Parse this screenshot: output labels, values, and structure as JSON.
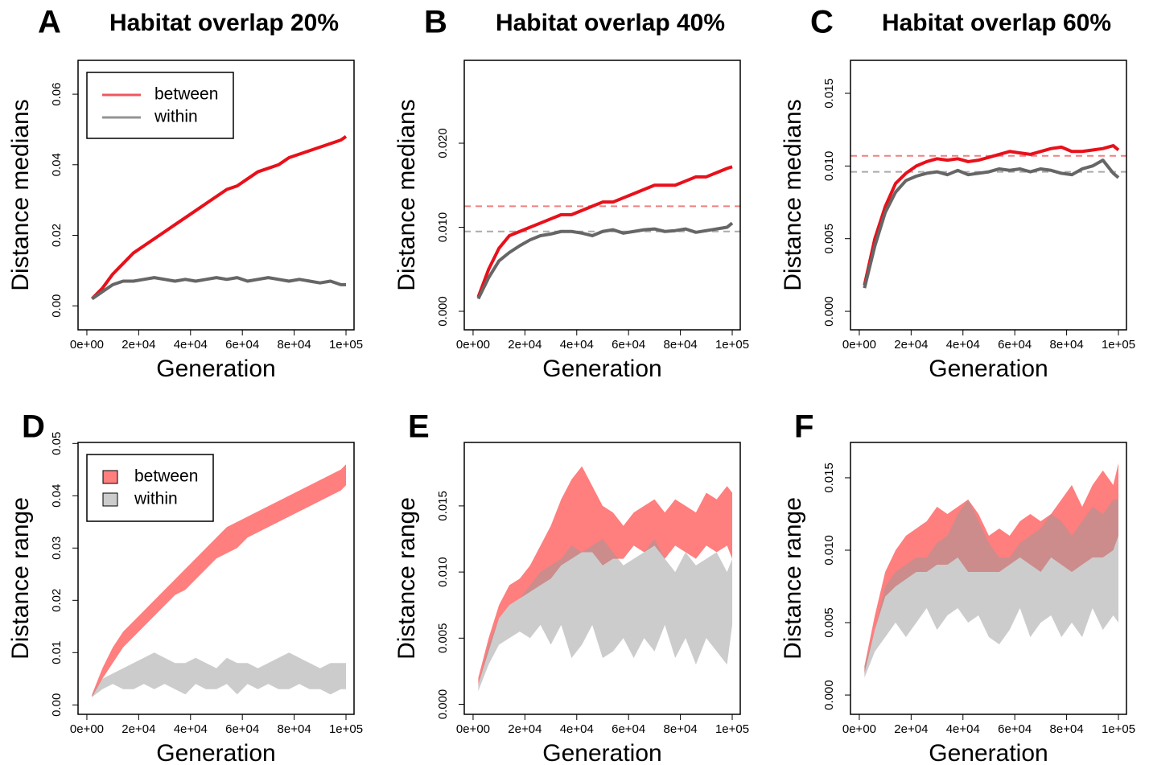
{
  "chart_data": [
    {
      "type": "line",
      "panel_label": "A",
      "title": "Habitat overlap 20%",
      "xlabel": "Generation",
      "ylabel": "Distance medians",
      "legend": "topleft",
      "x": [
        2000,
        6000,
        10000,
        14000,
        18000,
        22000,
        26000,
        30000,
        34000,
        38000,
        42000,
        46000,
        50000,
        54000,
        58000,
        62000,
        66000,
        70000,
        74000,
        78000,
        82000,
        86000,
        90000,
        94000,
        98000,
        100000
      ],
      "xlim": [
        -3400,
        103100
      ],
      "xticks": [
        {
          "value": 0,
          "label": "0e+00"
        },
        {
          "value": 20000,
          "label": "2e+04"
        },
        {
          "value": 40000,
          "label": "4e+04"
        },
        {
          "value": 60000,
          "label": "6e+04"
        },
        {
          "value": 80000,
          "label": "8e+04"
        },
        {
          "value": 100000,
          "label": "1e+05"
        }
      ],
      "ylim": [
        -0.0068,
        0.0696
      ],
      "yticks": [
        {
          "value": 0,
          "label": "0.00"
        },
        0.02,
        0.04,
        0.06
      ],
      "series": [
        {
          "name": "between",
          "color": "#e8101a",
          "values": [
            0.002,
            0.005,
            0.009,
            0.012,
            0.015,
            0.017,
            0.019,
            0.021,
            0.023,
            0.025,
            0.027,
            0.029,
            0.031,
            0.033,
            0.034,
            0.036,
            0.038,
            0.039,
            0.04,
            0.042,
            0.043,
            0.044,
            0.045,
            0.046,
            0.047,
            0.048
          ]
        },
        {
          "name": "within",
          "color": "#666666",
          "values": [
            0.002,
            0.004,
            0.006,
            0.007,
            0.007,
            0.0075,
            0.008,
            0.0075,
            0.007,
            0.0075,
            0.007,
            0.0075,
            0.008,
            0.0075,
            0.008,
            0.007,
            0.0075,
            0.008,
            0.0075,
            0.007,
            0.0075,
            0.007,
            0.0065,
            0.007,
            0.006,
            0.006
          ]
        }
      ]
    },
    {
      "type": "line",
      "panel_label": "B",
      "title": "Habitat overlap 40%",
      "xlabel": "Generation",
      "ylabel": "Distance medians",
      "x": [
        2000,
        6000,
        10000,
        14000,
        18000,
        22000,
        26000,
        30000,
        34000,
        38000,
        42000,
        46000,
        50000,
        54000,
        58000,
        62000,
        66000,
        70000,
        74000,
        78000,
        82000,
        86000,
        90000,
        94000,
        98000,
        100000
      ],
      "xlim": [
        -3400,
        103100
      ],
      "xticks": [
        {
          "value": 0,
          "label": "0e+00"
        },
        {
          "value": 20000,
          "label": "2e+04"
        },
        {
          "value": 40000,
          "label": "4e+04"
        },
        {
          "value": 60000,
          "label": "6e+04"
        },
        {
          "value": 80000,
          "label": "8e+04"
        },
        {
          "value": 100000,
          "label": "1e+05"
        }
      ],
      "ylim": [
        -0.0022,
        0.02986
      ],
      "yticks": [
        {
          "value": 0,
          "label": "0.000"
        },
        {
          "value": 0.01,
          "label": "0.010"
        },
        {
          "value": 0.02,
          "label": "0.020"
        }
      ],
      "hlines": [
        {
          "value": 0.0125,
          "color": "#f08080"
        },
        {
          "value": 0.0095,
          "color": "#aaaaaa"
        }
      ],
      "series": [
        {
          "name": "between",
          "color": "#e8101a",
          "values": [
            0.0017,
            0.005,
            0.0075,
            0.009,
            0.0095,
            0.01,
            0.0105,
            0.011,
            0.0115,
            0.0115,
            0.012,
            0.0125,
            0.013,
            0.013,
            0.0135,
            0.014,
            0.0145,
            0.015,
            0.015,
            0.015,
            0.0155,
            0.016,
            0.016,
            0.0165,
            0.017,
            0.0172
          ]
        },
        {
          "name": "within",
          "color": "#666666",
          "values": [
            0.0015,
            0.004,
            0.006,
            0.007,
            0.0078,
            0.0085,
            0.009,
            0.0092,
            0.0095,
            0.0095,
            0.0093,
            0.009,
            0.0095,
            0.0097,
            0.0093,
            0.0095,
            0.0097,
            0.0098,
            0.0095,
            0.0096,
            0.0098,
            0.0094,
            0.0096,
            0.0098,
            0.01,
            0.0105
          ]
        }
      ]
    },
    {
      "type": "line",
      "panel_label": "C",
      "title": "Habitat overlap 60%",
      "xlabel": "Generation",
      "ylabel": "Distance medians",
      "x": [
        2000,
        6000,
        10000,
        14000,
        18000,
        22000,
        26000,
        30000,
        34000,
        38000,
        42000,
        46000,
        50000,
        54000,
        58000,
        62000,
        66000,
        70000,
        74000,
        78000,
        82000,
        86000,
        90000,
        94000,
        98000,
        100000
      ],
      "xlim": [
        -3400,
        103100
      ],
      "xticks": [
        {
          "value": 0,
          "label": "0e+00"
        },
        {
          "value": 20000,
          "label": "2e+04"
        },
        {
          "value": 40000,
          "label": "4e+04"
        },
        {
          "value": 60000,
          "label": "6e+04"
        },
        {
          "value": 80000,
          "label": "8e+04"
        },
        {
          "value": 100000,
          "label": "1e+05"
        }
      ],
      "ylim": [
        -0.00127,
        0.01727
      ],
      "yticks": [
        {
          "value": 0,
          "label": "0.000"
        },
        0.005,
        {
          "value": 0.01,
          "label": "0.010"
        },
        0.015
      ],
      "hlines": [
        {
          "value": 0.0107,
          "color": "#f08080"
        },
        {
          "value": 0.0096,
          "color": "#aaaaaa"
        }
      ],
      "series": [
        {
          "name": "between",
          "color": "#e8101a",
          "values": [
            0.0018,
            0.005,
            0.0072,
            0.0088,
            0.0095,
            0.01,
            0.0103,
            0.0105,
            0.0104,
            0.0105,
            0.0103,
            0.0104,
            0.0106,
            0.0108,
            0.011,
            0.0109,
            0.0108,
            0.011,
            0.0112,
            0.0113,
            0.011,
            0.011,
            0.0111,
            0.0112,
            0.0114,
            0.0111
          ]
        },
        {
          "name": "within",
          "color": "#666666",
          "values": [
            0.0016,
            0.0045,
            0.0068,
            0.0082,
            0.009,
            0.0093,
            0.0095,
            0.0096,
            0.0094,
            0.0097,
            0.0094,
            0.0095,
            0.0096,
            0.0098,
            0.0097,
            0.0098,
            0.0096,
            0.0098,
            0.0097,
            0.0095,
            0.0094,
            0.0098,
            0.01,
            0.0104,
            0.0095,
            0.0092
          ]
        }
      ]
    },
    {
      "type": "band",
      "panel_label": "D",
      "xlabel": "Generation",
      "ylabel": "Distance range",
      "legend": "topleft",
      "x": [
        2000,
        6000,
        10000,
        14000,
        18000,
        22000,
        26000,
        30000,
        34000,
        38000,
        42000,
        46000,
        50000,
        54000,
        58000,
        62000,
        66000,
        70000,
        74000,
        78000,
        82000,
        86000,
        90000,
        94000,
        98000,
        100000
      ],
      "xlim": [
        -3400,
        103100
      ],
      "xticks": [
        {
          "value": 0,
          "label": "0e+00"
        },
        {
          "value": 20000,
          "label": "2e+04"
        },
        {
          "value": 40000,
          "label": "4e+04"
        },
        {
          "value": 60000,
          "label": "6e+04"
        },
        {
          "value": 80000,
          "label": "8e+04"
        },
        {
          "value": 100000,
          "label": "1e+05"
        }
      ],
      "ylim": [
        -0.0018,
        0.0502
      ],
      "yticks": [
        {
          "value": 0,
          "label": "0.00"
        },
        0.01,
        0.02,
        0.03,
        0.04,
        0.05
      ],
      "series": [
        {
          "name": "between",
          "color": "#ff7777",
          "low": [
            0.0015,
            0.005,
            0.008,
            0.011,
            0.013,
            0.015,
            0.017,
            0.019,
            0.021,
            0.022,
            0.024,
            0.026,
            0.028,
            0.029,
            0.03,
            0.032,
            0.033,
            0.034,
            0.035,
            0.036,
            0.037,
            0.038,
            0.039,
            0.04,
            0.041,
            0.042
          ],
          "high": [
            0.002,
            0.007,
            0.011,
            0.014,
            0.016,
            0.018,
            0.02,
            0.022,
            0.024,
            0.026,
            0.028,
            0.03,
            0.032,
            0.034,
            0.035,
            0.036,
            0.037,
            0.038,
            0.039,
            0.04,
            0.041,
            0.042,
            0.043,
            0.044,
            0.045,
            0.046
          ]
        },
        {
          "name": "within",
          "color": "#999999",
          "low": [
            0.0015,
            0.003,
            0.004,
            0.003,
            0.003,
            0.004,
            0.003,
            0.004,
            0.003,
            0.002,
            0.004,
            0.003,
            0.003,
            0.004,
            0.002,
            0.004,
            0.003,
            0.004,
            0.003,
            0.003,
            0.004,
            0.003,
            0.003,
            0.002,
            0.003,
            0.003
          ],
          "high": [
            0.002,
            0.005,
            0.006,
            0.007,
            0.008,
            0.009,
            0.01,
            0.009,
            0.008,
            0.008,
            0.009,
            0.008,
            0.007,
            0.009,
            0.008,
            0.008,
            0.007,
            0.008,
            0.009,
            0.01,
            0.009,
            0.008,
            0.007,
            0.008,
            0.008,
            0.008
          ]
        }
      ]
    },
    {
      "type": "band",
      "panel_label": "E",
      "xlabel": "Generation",
      "ylabel": "Distance range",
      "x": [
        2000,
        6000,
        10000,
        14000,
        18000,
        22000,
        26000,
        30000,
        34000,
        38000,
        42000,
        46000,
        50000,
        54000,
        58000,
        62000,
        66000,
        70000,
        74000,
        78000,
        82000,
        86000,
        90000,
        94000,
        98000,
        100000
      ],
      "xlim": [
        -3400,
        103100
      ],
      "xticks": [
        {
          "value": 0,
          "label": "0e+00"
        },
        {
          "value": 20000,
          "label": "2e+04"
        },
        {
          "value": 40000,
          "label": "4e+04"
        },
        {
          "value": 60000,
          "label": "6e+04"
        },
        {
          "value": 80000,
          "label": "8e+04"
        },
        {
          "value": 100000,
          "label": "1e+05"
        }
      ],
      "ylim": [
        -0.00076,
        0.0198
      ],
      "yticks": [
        {
          "value": 0,
          "label": "0.000"
        },
        0.005,
        {
          "value": 0.01,
          "label": "0.010"
        },
        0.015
      ],
      "series": [
        {
          "name": "between",
          "color": "#ff7777",
          "low": [
            0.0015,
            0.004,
            0.0065,
            0.0075,
            0.008,
            0.0085,
            0.009,
            0.0095,
            0.0105,
            0.011,
            0.0115,
            0.0115,
            0.0105,
            0.011,
            0.011,
            0.012,
            0.0115,
            0.012,
            0.011,
            0.012,
            0.0115,
            0.011,
            0.012,
            0.0115,
            0.012,
            0.011
          ],
          "high": [
            0.002,
            0.005,
            0.0075,
            0.009,
            0.0095,
            0.0105,
            0.012,
            0.0135,
            0.0155,
            0.017,
            0.018,
            0.0165,
            0.015,
            0.0145,
            0.0135,
            0.0145,
            0.015,
            0.0155,
            0.0145,
            0.0155,
            0.015,
            0.0145,
            0.016,
            0.0155,
            0.0165,
            0.016
          ]
        },
        {
          "name": "within",
          "color": "#999999",
          "low": [
            0.001,
            0.003,
            0.0045,
            0.005,
            0.0055,
            0.005,
            0.006,
            0.0045,
            0.006,
            0.0035,
            0.0045,
            0.006,
            0.0035,
            0.004,
            0.005,
            0.0035,
            0.005,
            0.004,
            0.006,
            0.0035,
            0.005,
            0.003,
            0.005,
            0.004,
            0.003,
            0.006
          ],
          "high": [
            0.0015,
            0.0045,
            0.0065,
            0.0075,
            0.008,
            0.009,
            0.01,
            0.0105,
            0.011,
            0.012,
            0.0115,
            0.012,
            0.0125,
            0.0115,
            0.0105,
            0.011,
            0.0115,
            0.0125,
            0.011,
            0.01,
            0.0115,
            0.0105,
            0.011,
            0.0115,
            0.01,
            0.011
          ]
        }
      ]
    },
    {
      "type": "band",
      "panel_label": "F",
      "xlabel": "Generation",
      "ylabel": "Distance range",
      "x": [
        2000,
        6000,
        10000,
        14000,
        18000,
        22000,
        26000,
        30000,
        34000,
        38000,
        42000,
        46000,
        50000,
        54000,
        58000,
        62000,
        66000,
        70000,
        74000,
        78000,
        82000,
        86000,
        90000,
        94000,
        98000,
        100000
      ],
      "xlim": [
        -3400,
        103100
      ],
      "xticks": [
        {
          "value": 0,
          "label": "0e+00"
        },
        {
          "value": 20000,
          "label": "2e+04"
        },
        {
          "value": 40000,
          "label": "4e+04"
        },
        {
          "value": 60000,
          "label": "6e+04"
        },
        {
          "value": 80000,
          "label": "8e+04"
        },
        {
          "value": 100000,
          "label": "1e+05"
        }
      ],
      "ylim": [
        -0.00133,
        0.01744
      ],
      "yticks": [
        {
          "value": 0,
          "label": "0.000"
        },
        0.005,
        {
          "value": 0.01,
          "label": "0.010"
        },
        0.015
      ],
      "series": [
        {
          "name": "between",
          "color": "#ff7777",
          "low": [
            0.0015,
            0.0045,
            0.0068,
            0.0075,
            0.008,
            0.0085,
            0.0085,
            0.009,
            0.009,
            0.0095,
            0.0085,
            0.0085,
            0.0085,
            0.0085,
            0.009,
            0.0095,
            0.009,
            0.0085,
            0.0095,
            0.009,
            0.0085,
            0.009,
            0.0095,
            0.0095,
            0.01,
            0.011
          ],
          "high": [
            0.002,
            0.0055,
            0.0085,
            0.01,
            0.011,
            0.0115,
            0.012,
            0.013,
            0.0125,
            0.013,
            0.0135,
            0.0125,
            0.011,
            0.0115,
            0.011,
            0.012,
            0.0125,
            0.012,
            0.0125,
            0.0135,
            0.0145,
            0.013,
            0.0145,
            0.0155,
            0.0145,
            0.016
          ]
        },
        {
          "name": "within",
          "color": "#999999",
          "low": [
            0.0012,
            0.003,
            0.004,
            0.005,
            0.004,
            0.005,
            0.006,
            0.0045,
            0.0055,
            0.006,
            0.005,
            0.0055,
            0.004,
            0.0035,
            0.0045,
            0.006,
            0.004,
            0.005,
            0.0055,
            0.004,
            0.005,
            0.004,
            0.006,
            0.0045,
            0.0055,
            0.005
          ],
          "high": [
            0.002,
            0.0045,
            0.0075,
            0.0085,
            0.009,
            0.0095,
            0.0095,
            0.0105,
            0.011,
            0.0125,
            0.0135,
            0.012,
            0.0105,
            0.0095,
            0.0095,
            0.0105,
            0.011,
            0.0115,
            0.0125,
            0.012,
            0.011,
            0.012,
            0.013,
            0.0125,
            0.0135,
            0.0135
          ]
        }
      ]
    }
  ]
}
